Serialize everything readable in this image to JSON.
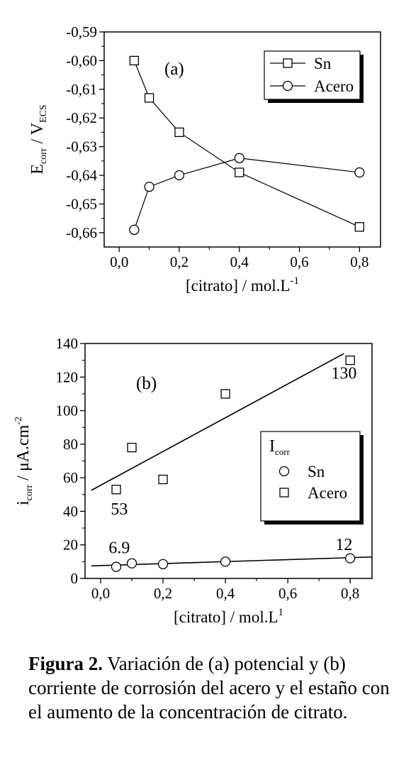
{
  "chart_data": [
    {
      "type": "line",
      "panel_label": "(a)",
      "x_tick_labels": [
        "0,0",
        "0,2",
        "0,4",
        "0,6",
        "0,8"
      ],
      "y_tick_labels": [
        "-0,59",
        "-0,60",
        "-0,61",
        "-0,62",
        "-0,63",
        "-0,64",
        "-0,65",
        "-0,66"
      ],
      "xlim": [
        -0.05,
        0.87
      ],
      "ylim": [
        -0.665,
        -0.59
      ],
      "x_ticks": [
        0.0,
        0.2,
        0.4,
        0.6,
        0.8
      ],
      "y_ticks": [
        -0.59,
        -0.6,
        -0.61,
        -0.62,
        -0.63,
        -0.64,
        -0.65,
        -0.66
      ],
      "ylabel": {
        "main": "E",
        "sub1": "corr",
        "mid": " / V",
        "sub2": "ECS"
      },
      "xlabel": {
        "main": "[citrato] / mol.L",
        "sup": "-1"
      },
      "legend": {
        "placement": "top-right"
      },
      "series": [
        {
          "name": "Sn",
          "marker": "square",
          "x": [
            0.05,
            0.1,
            0.2,
            0.4,
            0.8
          ],
          "y": [
            -0.6,
            -0.613,
            -0.625,
            -0.639,
            -0.658
          ]
        },
        {
          "name": "Acero",
          "marker": "circle",
          "x": [
            0.05,
            0.1,
            0.2,
            0.4,
            0.8
          ],
          "y": [
            -0.659,
            -0.644,
            -0.64,
            -0.634,
            -0.639
          ]
        }
      ]
    },
    {
      "type": "scatter",
      "panel_label": "(b)",
      "x_tick_labels": [
        "0,0",
        "0,2",
        "0,4",
        "0,6",
        "0,8"
      ],
      "y_tick_labels": [
        "0",
        "20",
        "40",
        "60",
        "80",
        "100",
        "120",
        "140"
      ],
      "xlim": [
        -0.05,
        0.87
      ],
      "ylim": [
        0,
        140
      ],
      "x_ticks": [
        0.0,
        0.2,
        0.4,
        0.6,
        0.8
      ],
      "y_ticks": [
        0,
        20,
        40,
        60,
        80,
        100,
        120,
        140
      ],
      "ylabel": {
        "main": "i",
        "sub1": "corr",
        "mid": " / μA.cm",
        "sup": "-2"
      },
      "xlabel": {
        "main": "[citrato] / mol.L",
        "sup": "1"
      },
      "legend": {
        "placement": "center-right",
        "title_main": "I",
        "title_sub": "corr"
      },
      "series": [
        {
          "name": "Sn",
          "marker": "circle",
          "x": [
            0.05,
            0.1,
            0.2,
            0.4,
            0.8
          ],
          "y": [
            6.9,
            9,
            8.5,
            10,
            12
          ]
        },
        {
          "name": "Acero",
          "marker": "square",
          "x": [
            0.05,
            0.1,
            0.2,
            0.4,
            0.8
          ],
          "y": [
            53,
            78,
            59,
            110,
            130
          ]
        }
      ],
      "fit_lines": [
        {
          "series": "Sn",
          "x": [
            -0.03,
            0.87
          ],
          "y": [
            7.5,
            12.8
          ]
        },
        {
          "series": "Acero",
          "x": [
            -0.03,
            0.78
          ],
          "y": [
            52.5,
            134
          ]
        }
      ],
      "annotations": [
        {
          "text": "53",
          "x": 0.06,
          "y": 38
        },
        {
          "text": "130",
          "x": 0.78,
          "y": 119
        },
        {
          "text": "6.9",
          "x": 0.06,
          "y": 15
        },
        {
          "text": "12",
          "x": 0.78,
          "y": 17
        }
      ]
    }
  ],
  "caption": {
    "label": "Figura 2.",
    "text": " Variación de (a) potencial y (b) corriente de corrosión del acero y el estaño con el aumento de la concentración de citrato."
  }
}
